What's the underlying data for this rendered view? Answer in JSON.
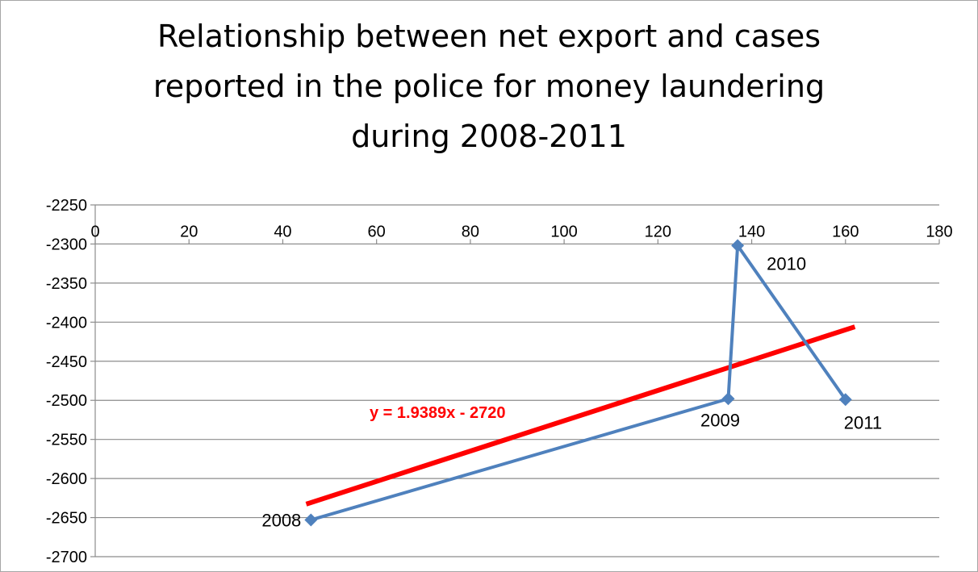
{
  "chart_data": {
    "type": "scatter",
    "title_lines": [
      "Relationship between net export and cases",
      "reported in the police for money laundering",
      "during 2008-2011"
    ],
    "xlabel": "",
    "ylabel": "",
    "xlim": [
      0,
      180
    ],
    "ylim": [
      -2700,
      -2250
    ],
    "x_ticks": [
      0,
      20,
      40,
      60,
      80,
      100,
      120,
      140,
      160,
      180
    ],
    "y_ticks": [
      -2250,
      -2300,
      -2350,
      -2400,
      -2450,
      -2500,
      -2550,
      -2600,
      -2650,
      -2700
    ],
    "x_axis_crosses_at": -2300,
    "grid": "horizontal",
    "legend": "none",
    "series": [
      {
        "points": [
          {
            "label": "2008",
            "x": 46,
            "y": -2653
          },
          {
            "label": "2009",
            "x": 135,
            "y": -2498
          },
          {
            "label": "2010",
            "x": 137,
            "y": -2302
          },
          {
            "label": "2011",
            "x": 160,
            "y": -2499
          }
        ],
        "color": "#4f81bd",
        "marker": "diamond"
      }
    ],
    "trendline": {
      "equation": "y = 1.9389x - 2720",
      "slope": 1.9389,
      "intercept": -2720,
      "x_range": [
        45,
        162
      ],
      "color": "#ff0000"
    }
  }
}
